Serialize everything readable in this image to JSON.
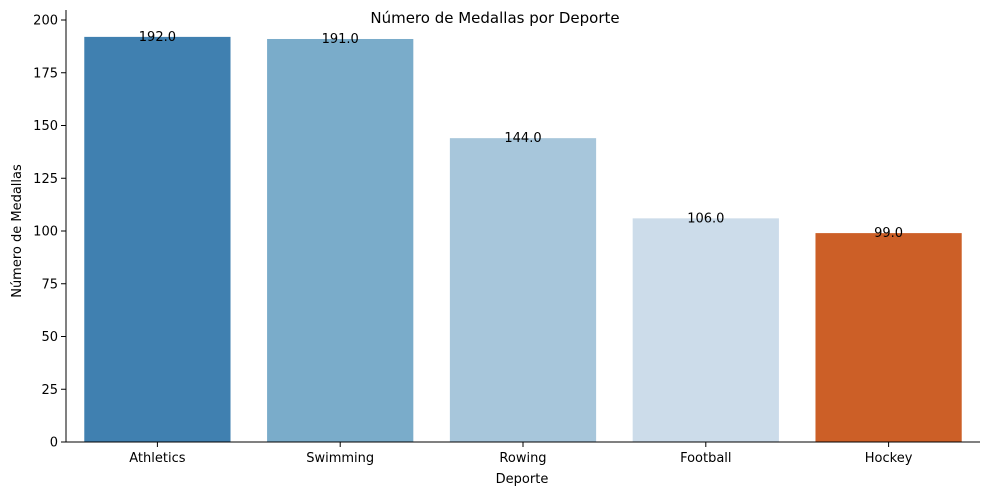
{
  "chart_data": {
    "type": "bar",
    "title": "Número de Medallas por Deporte",
    "xlabel": "Deporte",
    "ylabel": "Número de Medallas",
    "categories": [
      "Athletics",
      "Swimming",
      "Rowing",
      "Football",
      "Hockey"
    ],
    "values": [
      192.0,
      191.0,
      144.0,
      106.0,
      99.0
    ],
    "value_labels": [
      "192.0",
      "191.0",
      "144.0",
      "106.0",
      "99.0"
    ],
    "colors": [
      "#4080b0",
      "#7aacca",
      "#a7c6db",
      "#ccdcea",
      "#cc5f27"
    ],
    "ylim": [
      0,
      200
    ],
    "yticks": [
      0,
      25,
      50,
      75,
      100,
      125,
      150,
      175,
      200
    ],
    "grid": false,
    "legend": "none"
  }
}
